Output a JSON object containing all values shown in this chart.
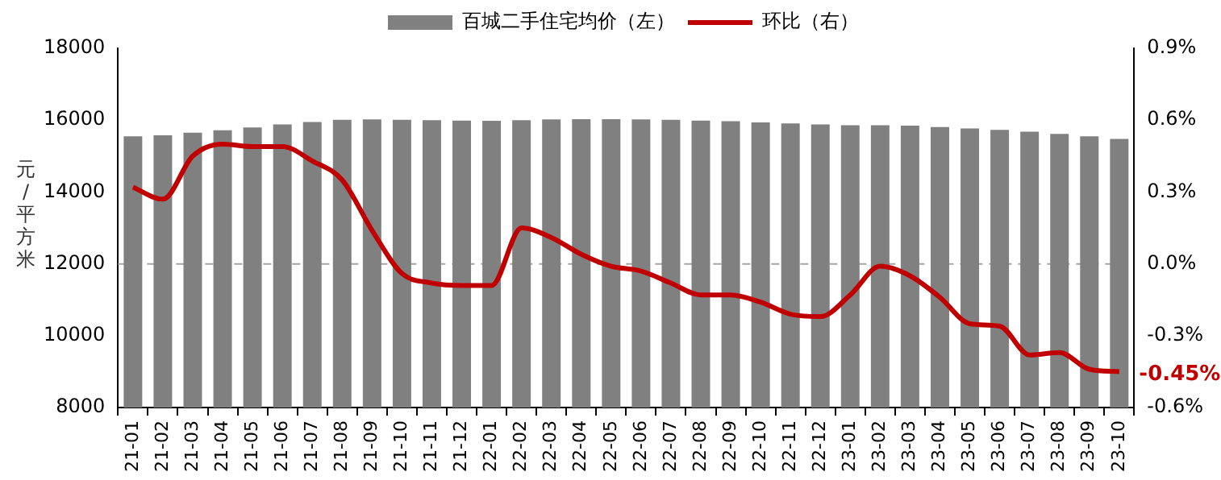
{
  "chart_data": {
    "type": "bar",
    "ylabel": "元/平方米",
    "legend": "top",
    "categories": [
      "21-01",
      "21-02",
      "21-03",
      "21-04",
      "21-05",
      "21-06",
      "21-07",
      "21-08",
      "21-09",
      "21-10",
      "21-11",
      "21-12",
      "22-01",
      "22-02",
      "22-03",
      "22-04",
      "22-05",
      "22-06",
      "22-07",
      "22-08",
      "22-09",
      "22-10",
      "22-11",
      "22-12",
      "23-01",
      "23-02",
      "23-03",
      "23-04",
      "23-05",
      "23-06",
      "23-07",
      "23-08",
      "23-09",
      "23-10"
    ],
    "series": [
      {
        "name": "百城二手住宅均价（左）",
        "color": "#808080",
        "values": [
          15550,
          15580,
          15650,
          15720,
          15800,
          15880,
          15950,
          16010,
          16020,
          16010,
          16000,
          15990,
          15980,
          16000,
          16020,
          16030,
          16030,
          16020,
          16010,
          15990,
          15970,
          15940,
          15910,
          15880,
          15860,
          15860,
          15850,
          15810,
          15770,
          15730,
          15680,
          15620,
          15550,
          15480
        ]
      },
      {
        "name": "环比（右）",
        "type": "line",
        "axis": "y2",
        "color": "#c00000",
        "marker": "none",
        "line_style": "solid",
        "values": [
          0.32,
          0.27,
          0.45,
          0.5,
          0.49,
          0.49,
          0.43,
          0.35,
          0.14,
          -0.04,
          -0.08,
          -0.09,
          -0.09,
          0.15,
          0.11,
          0.04,
          -0.01,
          -0.03,
          -0.08,
          -0.13,
          -0.13,
          -0.16,
          -0.21,
          -0.22,
          -0.13,
          -0.01,
          -0.05,
          -0.14,
          -0.25,
          -0.26,
          -0.38,
          -0.37,
          -0.44,
          -0.45
        ]
      }
    ],
    "ylim": [
      8000,
      18000
    ],
    "yticks": [
      8000,
      10000,
      12000,
      14000,
      16000,
      18000
    ],
    "y2lim": [
      -0.6,
      0.9
    ],
    "y2ticks": [
      {
        "value": -0.6,
        "label": "-0.6%"
      },
      {
        "value": -0.3,
        "label": "-0.3%"
      },
      {
        "value": 0,
        "label": "0.0%"
      },
      {
        "value": 0.3,
        "label": "0.3%"
      },
      {
        "value": 0.6,
        "label": "0.6%"
      },
      {
        "value": 0.9,
        "label": "0.9%"
      }
    ],
    "ref_lines": [
      {
        "axis": "y2",
        "value": 0,
        "color": "#a6a6a6",
        "line_style": "dashed"
      }
    ],
    "annotations": [
      "-0.45%"
    ],
    "grid": false
  }
}
